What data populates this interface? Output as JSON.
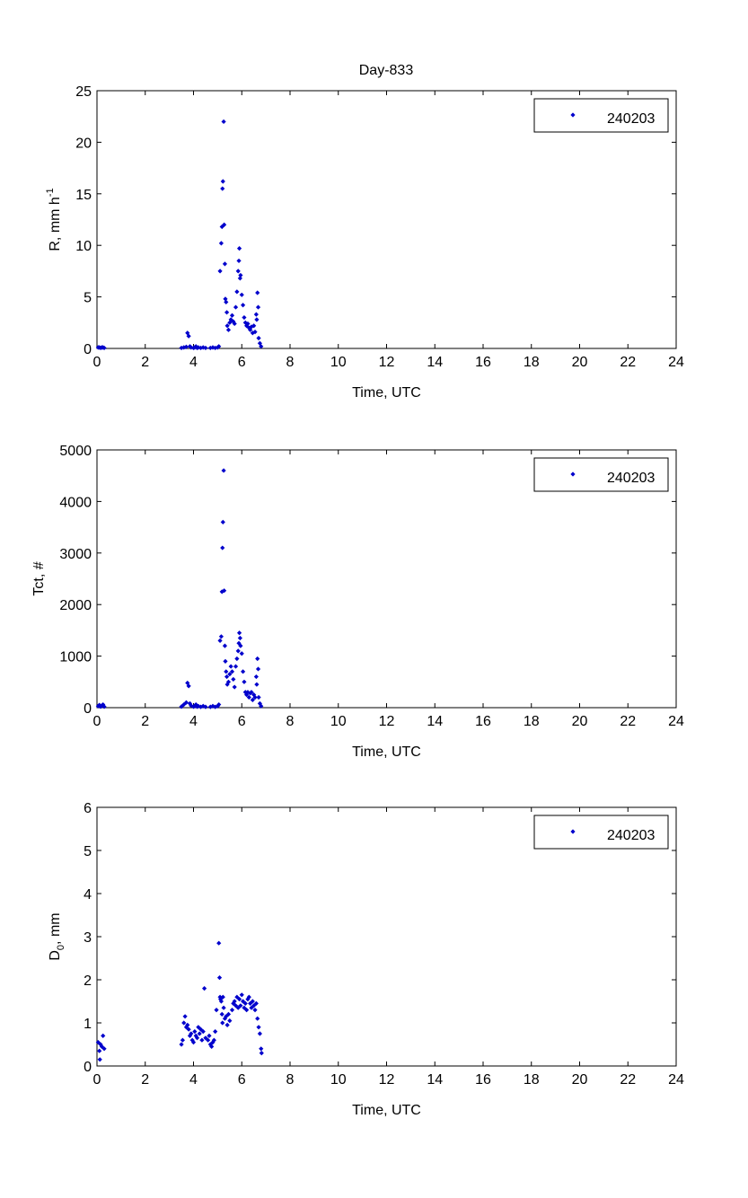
{
  "figure": {
    "title": "Day-833"
  },
  "chart_data": [
    {
      "type": "scatter",
      "ylabel": "R, mm h",
      "ylabel_sup": "-1",
      "xlabel": "Time, UTC",
      "xlim": [
        0,
        24
      ],
      "ylim": [
        0,
        25
      ],
      "xticks": [
        0,
        2,
        4,
        6,
        8,
        10,
        12,
        14,
        16,
        18,
        20,
        22,
        24
      ],
      "yticks": [
        0,
        5,
        10,
        15,
        20,
        25
      ],
      "legend": {
        "position": "top-right",
        "label": "240203"
      },
      "series": [
        {
          "name": "240203",
          "color": "#0000cc",
          "points": [
            [
              0.05,
              0.1
            ],
            [
              0.1,
              0.1
            ],
            [
              0.15,
              0.05
            ],
            [
              0.2,
              0.1
            ],
            [
              0.25,
              0.1
            ],
            [
              0.3,
              0.05
            ],
            [
              3.5,
              0.05
            ],
            [
              3.6,
              0.1
            ],
            [
              3.7,
              0.15
            ],
            [
              3.75,
              1.5
            ],
            [
              3.8,
              1.2
            ],
            [
              3.85,
              0.2
            ],
            [
              3.9,
              0.1
            ],
            [
              4.0,
              0.05
            ],
            [
              4.05,
              0.1
            ],
            [
              4.1,
              0.2
            ],
            [
              4.15,
              0.05
            ],
            [
              4.2,
              0.1
            ],
            [
              4.3,
              0.05
            ],
            [
              4.4,
              0.1
            ],
            [
              4.5,
              0.05
            ],
            [
              4.7,
              0.05
            ],
            [
              4.8,
              0.1
            ],
            [
              4.9,
              0.05
            ],
            [
              5.0,
              0.1
            ],
            [
              5.05,
              0.2
            ],
            [
              5.1,
              7.5
            ],
            [
              5.15,
              10.2
            ],
            [
              5.18,
              11.8
            ],
            [
              5.2,
              15.5
            ],
            [
              5.22,
              16.2
            ],
            [
              5.25,
              22.0
            ],
            [
              5.27,
              12.0
            ],
            [
              5.3,
              8.2
            ],
            [
              5.32,
              4.8
            ],
            [
              5.35,
              4.5
            ],
            [
              5.38,
              3.5
            ],
            [
              5.4,
              2.2
            ],
            [
              5.45,
              1.8
            ],
            [
              5.5,
              2.5
            ],
            [
              5.55,
              2.8
            ],
            [
              5.6,
              3.2
            ],
            [
              5.65,
              2.6
            ],
            [
              5.7,
              2.4
            ],
            [
              5.75,
              4.0
            ],
            [
              5.8,
              5.5
            ],
            [
              5.85,
              7.5
            ],
            [
              5.88,
              8.5
            ],
            [
              5.9,
              9.7
            ],
            [
              5.93,
              6.8
            ],
            [
              5.95,
              7.1
            ],
            [
              6.0,
              5.2
            ],
            [
              6.05,
              4.2
            ],
            [
              6.1,
              3.0
            ],
            [
              6.15,
              2.5
            ],
            [
              6.2,
              2.2
            ],
            [
              6.25,
              2.4
            ],
            [
              6.3,
              2.0
            ],
            [
              6.35,
              1.8
            ],
            [
              6.4,
              2.1
            ],
            [
              6.45,
              1.5
            ],
            [
              6.5,
              2.2
            ],
            [
              6.55,
              1.6
            ],
            [
              6.6,
              3.3
            ],
            [
              6.62,
              2.8
            ],
            [
              6.65,
              5.4
            ],
            [
              6.68,
              4.0
            ],
            [
              6.7,
              1.0
            ],
            [
              6.75,
              0.5
            ],
            [
              6.8,
              0.2
            ]
          ]
        }
      ]
    },
    {
      "type": "scatter",
      "ylabel": "Tct, #",
      "xlabel": "Time, UTC",
      "xlim": [
        0,
        24
      ],
      "ylim": [
        0,
        5000
      ],
      "xticks": [
        0,
        2,
        4,
        6,
        8,
        10,
        12,
        14,
        16,
        18,
        20,
        22,
        24
      ],
      "yticks": [
        0,
        1000,
        2000,
        3000,
        4000,
        5000
      ],
      "legend": {
        "position": "top-right",
        "label": "240203"
      },
      "series": [
        {
          "name": "240203",
          "color": "#0000cc",
          "points": [
            [
              0.05,
              30
            ],
            [
              0.1,
              50
            ],
            [
              0.15,
              20
            ],
            [
              0.2,
              40
            ],
            [
              0.25,
              60
            ],
            [
              0.3,
              20
            ],
            [
              3.5,
              20
            ],
            [
              3.6,
              60
            ],
            [
              3.7,
              100
            ],
            [
              3.75,
              480
            ],
            [
              3.8,
              420
            ],
            [
              3.85,
              80
            ],
            [
              3.9,
              40
            ],
            [
              4.0,
              20
            ],
            [
              4.05,
              30
            ],
            [
              4.1,
              60
            ],
            [
              4.15,
              20
            ],
            [
              4.2,
              30
            ],
            [
              4.3,
              15
            ],
            [
              4.4,
              30
            ],
            [
              4.5,
              15
            ],
            [
              4.7,
              15
            ],
            [
              4.8,
              30
            ],
            [
              4.9,
              15
            ],
            [
              5.0,
              30
            ],
            [
              5.05,
              60
            ],
            [
              5.1,
              1300
            ],
            [
              5.15,
              1380
            ],
            [
              5.18,
              2250
            ],
            [
              5.2,
              3100
            ],
            [
              5.22,
              3600
            ],
            [
              5.25,
              4600
            ],
            [
              5.27,
              2270
            ],
            [
              5.3,
              1200
            ],
            [
              5.32,
              900
            ],
            [
              5.35,
              700
            ],
            [
              5.38,
              600
            ],
            [
              5.4,
              450
            ],
            [
              5.45,
              500
            ],
            [
              5.5,
              650
            ],
            [
              5.55,
              800
            ],
            [
              5.6,
              700
            ],
            [
              5.65,
              550
            ],
            [
              5.7,
              400
            ],
            [
              5.75,
              800
            ],
            [
              5.8,
              950
            ],
            [
              5.85,
              1100
            ],
            [
              5.88,
              1250
            ],
            [
              5.9,
              1450
            ],
            [
              5.93,
              1350
            ],
            [
              5.95,
              1200
            ],
            [
              6.0,
              1050
            ],
            [
              6.05,
              700
            ],
            [
              6.1,
              500
            ],
            [
              6.15,
              300
            ],
            [
              6.2,
              250
            ],
            [
              6.25,
              300
            ],
            [
              6.3,
              200
            ],
            [
              6.35,
              280
            ],
            [
              6.4,
              300
            ],
            [
              6.45,
              150
            ],
            [
              6.5,
              250
            ],
            [
              6.55,
              200
            ],
            [
              6.6,
              600
            ],
            [
              6.62,
              450
            ],
            [
              6.65,
              950
            ],
            [
              6.68,
              750
            ],
            [
              6.7,
              200
            ],
            [
              6.75,
              80
            ],
            [
              6.8,
              30
            ]
          ]
        }
      ]
    },
    {
      "type": "scatter",
      "ylabel": "D",
      "ylabel_sub": "0",
      "ylabel_suffix": ", mm",
      "xlabel": "Time, UTC",
      "xlim": [
        0,
        24
      ],
      "ylim": [
        0,
        6
      ],
      "xticks": [
        0,
        2,
        4,
        6,
        8,
        10,
        12,
        14,
        16,
        18,
        20,
        22,
        24
      ],
      "yticks": [
        0,
        1,
        2,
        3,
        4,
        5,
        6
      ],
      "legend": {
        "position": "top-right",
        "label": "240203"
      },
      "series": [
        {
          "name": "240203",
          "color": "#0000cc",
          "points": [
            [
              0.05,
              0.55
            ],
            [
              0.1,
              0.35
            ],
            [
              0.12,
              0.15
            ],
            [
              0.15,
              0.5
            ],
            [
              0.2,
              0.45
            ],
            [
              0.25,
              0.7
            ],
            [
              0.3,
              0.4
            ],
            [
              3.5,
              0.5
            ],
            [
              3.55,
              0.6
            ],
            [
              3.6,
              1.0
            ],
            [
              3.65,
              1.15
            ],
            [
              3.7,
              0.9
            ],
            [
              3.75,
              0.95
            ],
            [
              3.8,
              0.85
            ],
            [
              3.85,
              0.7
            ],
            [
              3.9,
              0.75
            ],
            [
              3.95,
              0.6
            ],
            [
              4.0,
              0.55
            ],
            [
              4.05,
              0.8
            ],
            [
              4.1,
              0.7
            ],
            [
              4.15,
              0.65
            ],
            [
              4.2,
              0.9
            ],
            [
              4.25,
              0.75
            ],
            [
              4.3,
              0.85
            ],
            [
              4.35,
              0.6
            ],
            [
              4.4,
              0.8
            ],
            [
              4.45,
              1.8
            ],
            [
              4.5,
              0.65
            ],
            [
              4.6,
              0.6
            ],
            [
              4.65,
              0.7
            ],
            [
              4.7,
              0.5
            ],
            [
              4.75,
              0.45
            ],
            [
              4.8,
              0.55
            ],
            [
              4.85,
              0.6
            ],
            [
              4.9,
              0.8
            ],
            [
              4.95,
              1.3
            ],
            [
              5.05,
              2.85
            ],
            [
              5.08,
              2.05
            ],
            [
              5.1,
              1.6
            ],
            [
              5.12,
              1.55
            ],
            [
              5.15,
              1.5
            ],
            [
              5.18,
              1.2
            ],
            [
              5.2,
              1.0
            ],
            [
              5.22,
              1.6
            ],
            [
              5.25,
              1.35
            ],
            [
              5.3,
              1.1
            ],
            [
              5.35,
              1.15
            ],
            [
              5.4,
              0.95
            ],
            [
              5.45,
              1.2
            ],
            [
              5.5,
              1.05
            ],
            [
              5.6,
              1.3
            ],
            [
              5.65,
              1.45
            ],
            [
              5.7,
              1.5
            ],
            [
              5.75,
              1.4
            ],
            [
              5.8,
              1.6
            ],
            [
              5.85,
              1.35
            ],
            [
              5.9,
              1.55
            ],
            [
              5.95,
              1.4
            ],
            [
              6.0,
              1.65
            ],
            [
              6.05,
              1.5
            ],
            [
              6.1,
              1.35
            ],
            [
              6.15,
              1.45
            ],
            [
              6.2,
              1.3
            ],
            [
              6.25,
              1.55
            ],
            [
              6.3,
              1.6
            ],
            [
              6.35,
              1.45
            ],
            [
              6.4,
              1.35
            ],
            [
              6.45,
              1.5
            ],
            [
              6.5,
              1.4
            ],
            [
              6.55,
              1.3
            ],
            [
              6.6,
              1.45
            ],
            [
              6.65,
              1.1
            ],
            [
              6.7,
              0.9
            ],
            [
              6.75,
              0.75
            ],
            [
              6.8,
              0.4
            ],
            [
              6.82,
              0.3
            ]
          ]
        }
      ]
    }
  ]
}
